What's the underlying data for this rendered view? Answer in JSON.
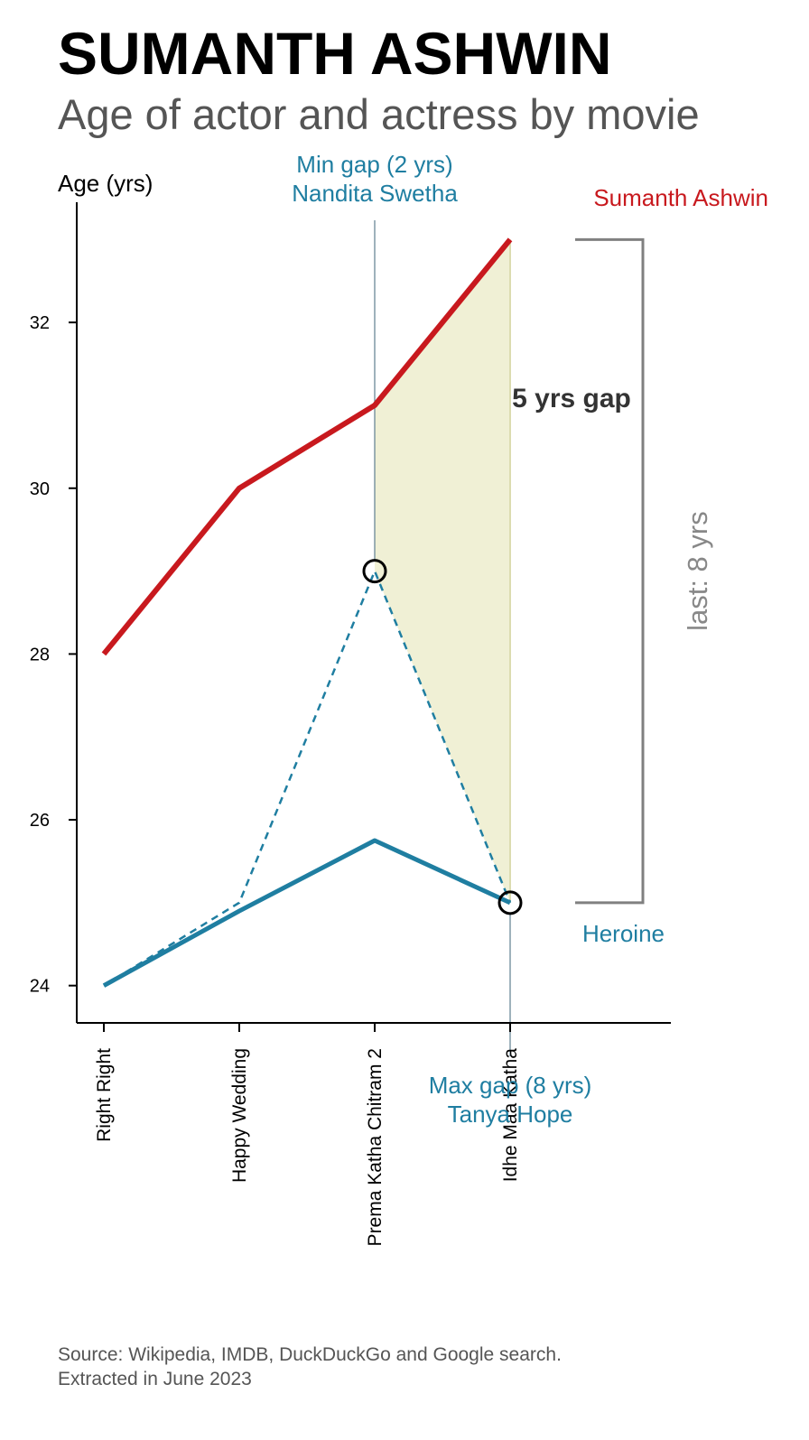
{
  "header": {
    "title": "SUMANTH ASHWIN",
    "subtitle": "Age of actor and actress by movie"
  },
  "chart_data": {
    "type": "line",
    "ylabel": "Age (yrs)",
    "ylim": [
      23.55,
      33.45
    ],
    "yticks": [
      "24",
      "26",
      "28",
      "30",
      "32"
    ],
    "categories": [
      "Right Right",
      "Happy Wedding",
      "Prema Katha Chitram 2",
      "Idhe Maa Katha"
    ],
    "series": [
      {
        "name": "Sumanth Ashwin",
        "style": "solid",
        "color": "#c8191e",
        "values": [
          28,
          30,
          31,
          33
        ]
      },
      {
        "name": "Heroine",
        "style": "solid",
        "color": "#1f7ea1",
        "values": [
          24,
          24.9,
          25.75,
          25
        ]
      },
      {
        "name": "",
        "style": "dashed",
        "color": "#1f7ea1",
        "values": [
          24,
          25,
          29,
          25
        ]
      }
    ],
    "annotations": {
      "min_gap": {
        "line1": "Min gap (2 yrs)",
        "line2": "Nandita Swetha",
        "category": "Prema Katha Chitram 2",
        "value": 29
      },
      "max_gap": {
        "line1": "Max gap (8 yrs)",
        "line2": "Tanya Hope",
        "category": "Idhe Maa Katha",
        "value": 25
      },
      "shaded_gap_label": "5 yrs gap",
      "bracket_label": "last: 8 yrs",
      "bracket_range": [
        25,
        33
      ]
    },
    "colors": {
      "actor": "#c8191e",
      "heroine": "#1f7ea1",
      "shade": "#f0f0d5",
      "bracket": "#808080",
      "guide": "#5f7f8f"
    }
  },
  "footer": {
    "source_line1": "Source: Wikipedia, IMDB, DuckDuckGo and Google search.",
    "source_line2": "Extracted in June 2023"
  }
}
